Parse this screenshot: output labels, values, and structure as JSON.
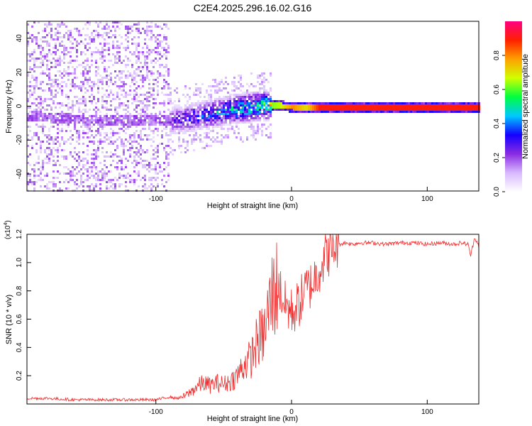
{
  "title": "C2E4.2025.296.16.02.G16",
  "chart_data": [
    {
      "type": "heatmap",
      "xlabel": "Height of straight line (km)",
      "ylabel": "Frequency (Hz)",
      "xlim": [
        -195,
        138
      ],
      "ylim": [
        -50,
        50
      ],
      "xticks": [
        -100,
        0,
        100
      ],
      "xtick_labels": [
        "-100",
        "0",
        "100"
      ],
      "yticks": [
        -40,
        -20,
        0,
        20,
        40
      ],
      "ytick_labels": [
        "-40",
        "-20",
        "0",
        "20",
        "40"
      ],
      "colorbar": {
        "label": "Normalized spectral amplitude",
        "range": [
          0,
          1
        ],
        "ticks": [
          0.0,
          0.2,
          0.4,
          0.6,
          0.8
        ],
        "tick_labels": [
          "0.0",
          "0.2",
          "0.4",
          "0.6",
          "0.8"
        ],
        "colors": [
          "#ffffff",
          "#d8b8ff",
          "#8a2be2",
          "#1400ff",
          "#00c8ff",
          "#00ff40",
          "#d0ff00",
          "#ffa000",
          "#ff2000",
          "#ff0080"
        ]
      },
      "ridge": {
        "x": [
          -195,
          -180,
          -160,
          -140,
          -120,
          -100,
          -90,
          -80,
          -70,
          -60,
          -50,
          -40,
          -30,
          -20,
          -10,
          0,
          10,
          20,
          40,
          60,
          80,
          100,
          120,
          138
        ],
        "freq": [
          -5,
          -6,
          -7,
          -8,
          -8,
          -8,
          -8,
          -7,
          -5,
          -4,
          -2,
          -1,
          0,
          1,
          1,
          0,
          0,
          0,
          0,
          0,
          0,
          0,
          0,
          0
        ],
        "amplitude": [
          0.12,
          0.12,
          0.12,
          0.12,
          0.12,
          0.18,
          0.25,
          0.3,
          0.35,
          0.4,
          0.45,
          0.5,
          0.55,
          0.6,
          0.65,
          0.8,
          0.7,
          0.9,
          0.9,
          0.9,
          0.9,
          0.9,
          0.9,
          0.9
        ]
      }
    },
    {
      "type": "line",
      "xlabel": "Height of straight line (km)",
      "ylabel": "SNR (10 * v/v)",
      "y_multiplier": "(x10",
      "y_multiplier_exp": "4",
      "y_multiplier_close": ")",
      "xlim": [
        -195,
        138
      ],
      "ylim": [
        0,
        1.2
      ],
      "xticks": [
        -100,
        0,
        100
      ],
      "xtick_labels": [
        "-100",
        "0",
        "100"
      ],
      "yticks": [
        0.2,
        0.4,
        0.6,
        0.8,
        1.0,
        1.2
      ],
      "ytick_labels": [
        "0.2",
        "0.4",
        "0.6",
        "0.8",
        "1.0",
        "1.2"
      ],
      "color": "#ee2a2a",
      "series": [
        {
          "name": "SNR",
          "x": [
            -195,
            -180,
            -160,
            -140,
            -120,
            -100,
            -95,
            -90,
            -85,
            -80,
            -75,
            -70,
            -65,
            -60,
            -55,
            -50,
            -45,
            -40,
            -35,
            -30,
            -25,
            -20,
            -15,
            -10,
            -5,
            0,
            5,
            10,
            15,
            20,
            25,
            30,
            35,
            40,
            45,
            50,
            60,
            70,
            80,
            90,
            100,
            110,
            120,
            125,
            130,
            132,
            135,
            138
          ],
          "y": [
            0.04,
            0.04,
            0.03,
            0.03,
            0.03,
            0.03,
            0.04,
            0.05,
            0.04,
            0.05,
            0.08,
            0.12,
            0.15,
            0.13,
            0.15,
            0.14,
            0.16,
            0.2,
            0.28,
            0.32,
            0.45,
            0.5,
            0.75,
            0.85,
            0.7,
            0.65,
            0.7,
            0.8,
            0.85,
            0.95,
            1.05,
            1.1,
            1.13,
            1.14,
            1.13,
            1.14,
            1.14,
            1.13,
            1.14,
            1.14,
            1.13,
            1.14,
            1.13,
            1.14,
            1.13,
            1.05,
            1.18,
            1.12
          ]
        }
      ]
    }
  ]
}
